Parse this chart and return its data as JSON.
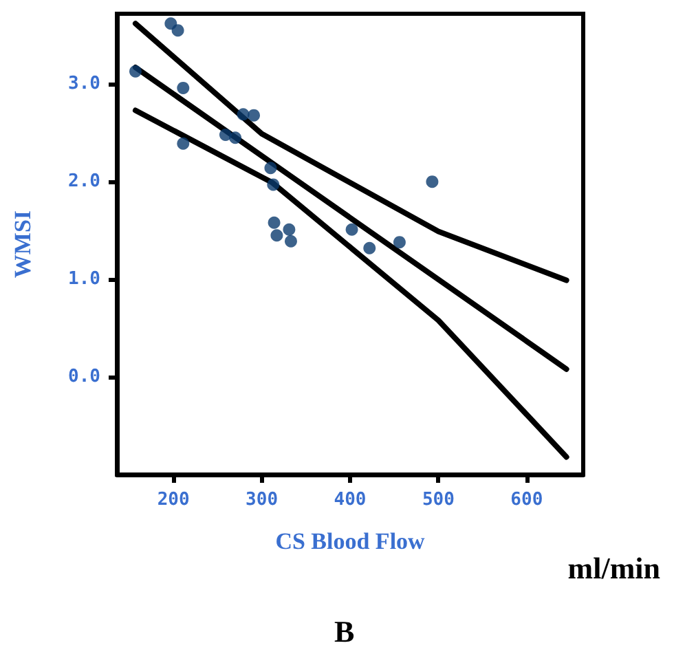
{
  "chart_data": {
    "type": "scatter",
    "xlabel": "CS Blood Flow",
    "ylabel": "WMSI",
    "annotations": [
      "ml/min",
      "B"
    ],
    "xlim": [
      136,
      664
    ],
    "xticks": [
      200,
      300,
      400,
      500,
      600
    ],
    "ylim": [
      -1.0,
      3.72
    ],
    "yticks": [
      {
        "value": 0,
        "label": "0.0"
      },
      {
        "value": 1,
        "label": "1.0"
      },
      {
        "value": 2,
        "label": "2.0"
      },
      {
        "value": 3,
        "label": "3.0"
      }
    ],
    "grid": false,
    "marker": "circle",
    "series": [
      {
        "color": "#0b3b6e",
        "x": [
          157,
          197,
          205,
          211,
          211,
          259,
          270,
          279,
          291,
          310,
          313,
          314,
          317,
          331,
          333,
          402,
          422,
          456,
          493
        ],
        "values": [
          3.13,
          3.62,
          3.55,
          2.96,
          2.39,
          2.48,
          2.45,
          2.69,
          2.68,
          2.14,
          1.97,
          1.58,
          1.45,
          1.51,
          1.39,
          1.51,
          1.32,
          1.38,
          2.0
        ]
      },
      {
        "type": "line",
        "color": "#000000",
        "line_style": "solid",
        "marker": "none",
        "x": [
          157,
          300,
          400,
          500,
          645
        ],
        "values": [
          3.62,
          2.49,
          1.99,
          1.49,
          0.99
        ]
      },
      {
        "type": "line",
        "color": "#000000",
        "line_style": "solid",
        "marker": "none",
        "x": [
          157,
          645
        ],
        "values": [
          3.17,
          0.08
        ]
      },
      {
        "type": "line",
        "color": "#000000",
        "line_style": "solid",
        "marker": "none",
        "x": [
          157,
          312,
          500,
          645
        ],
        "values": [
          2.73,
          1.99,
          0.58,
          -0.82
        ]
      }
    ]
  }
}
